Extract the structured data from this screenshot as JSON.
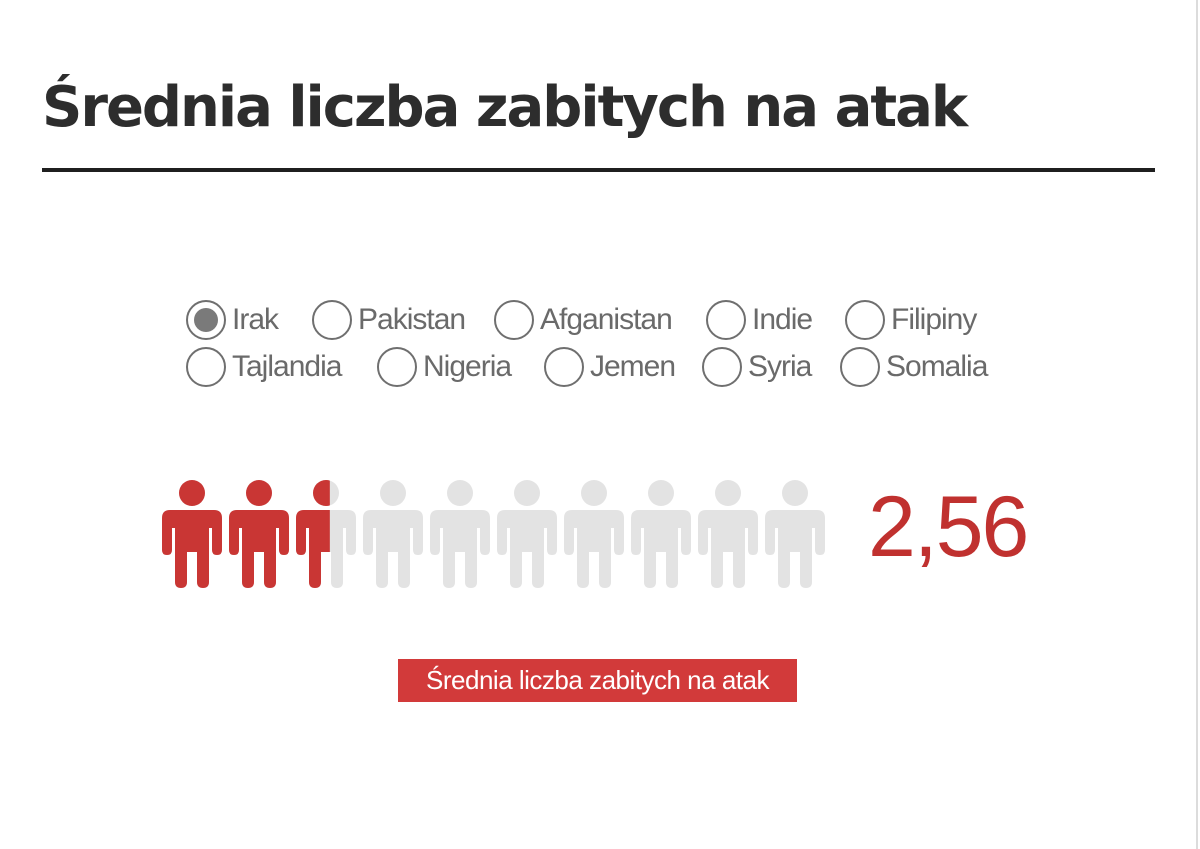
{
  "title": "Średnia liczba zabitych na atak",
  "countries": {
    "row1": [
      {
        "label": "Irak",
        "checked": true
      },
      {
        "label": "Pakistan",
        "checked": false
      },
      {
        "label": "Afganistan",
        "checked": false
      },
      {
        "label": "Indie",
        "checked": false
      },
      {
        "label": "Filipiny",
        "checked": false
      }
    ],
    "row2": [
      {
        "label": "Tajlandia",
        "checked": false
      },
      {
        "label": "Nigeria",
        "checked": false
      },
      {
        "label": "Jemen",
        "checked": false
      },
      {
        "label": "Syria",
        "checked": false
      },
      {
        "label": "Somalia",
        "checked": false
      }
    ]
  },
  "colors": {
    "filled": "#c93634",
    "empty": "#e3e3e3",
    "value": "#c0312f",
    "tag_background": "#d23a3a"
  },
  "chart_data": {
    "type": "bar",
    "categories": [
      "Irak"
    ],
    "values": [
      2.56
    ],
    "display_value": "2,56",
    "max_icons": 10,
    "legend": "Średnia liczba zabitych na atak"
  }
}
